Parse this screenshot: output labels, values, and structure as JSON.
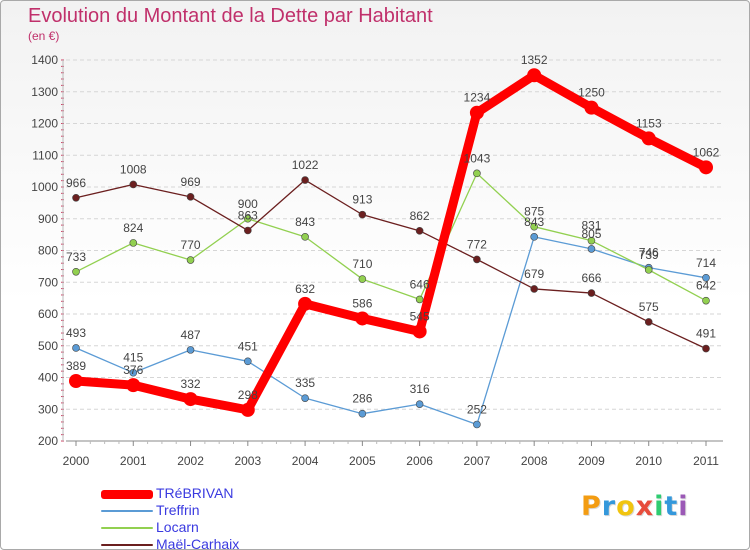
{
  "title": "Evolution du Montant de la Dette par Habitant",
  "subtitle": "(en €)",
  "logo": {
    "text": "Proxiti",
    "colors": [
      "#f39c12",
      "#3498db",
      "#f1c40f",
      "#e74c3c",
      "#2ecc71",
      "#3498db",
      "#9b59b6"
    ]
  },
  "chart_data": {
    "type": "line",
    "title": "Evolution du Montant de la Dette par Habitant",
    "subtitle": "(en €)",
    "xlabel": "",
    "ylabel": "",
    "x": [
      "2000",
      "2001",
      "2002",
      "2003",
      "2004",
      "2005",
      "2006",
      "2007",
      "2008",
      "2009",
      "2010",
      "2011"
    ],
    "ylim": [
      200,
      1400
    ],
    "yticks": [
      200,
      300,
      400,
      500,
      600,
      700,
      800,
      900,
      1000,
      1100,
      1200,
      1300,
      1400
    ],
    "grid": "horizontal",
    "legend_position": "bottom-left",
    "series": [
      {
        "name": "TRéBRIVAN",
        "color": "#ff0000",
        "highlight": true,
        "values": [
          389,
          376,
          332,
          298,
          632,
          586,
          545,
          1234,
          1352,
          1250,
          1153,
          1062
        ]
      },
      {
        "name": "Treffrin",
        "color": "#5b9bd5",
        "values": [
          493,
          415,
          487,
          451,
          335,
          286,
          316,
          252,
          843,
          805,
          746,
          714
        ]
      },
      {
        "name": "Locarn",
        "color": "#92d050",
        "values": [
          733,
          824,
          770,
          900,
          843,
          710,
          646,
          1043,
          875,
          831,
          739,
          642
        ]
      },
      {
        "name": "Maël-Carhaix",
        "color": "#6b1f1f",
        "values": [
          966,
          1008,
          969,
          863,
          1022,
          913,
          862,
          772,
          679,
          666,
          575,
          491
        ]
      }
    ]
  }
}
